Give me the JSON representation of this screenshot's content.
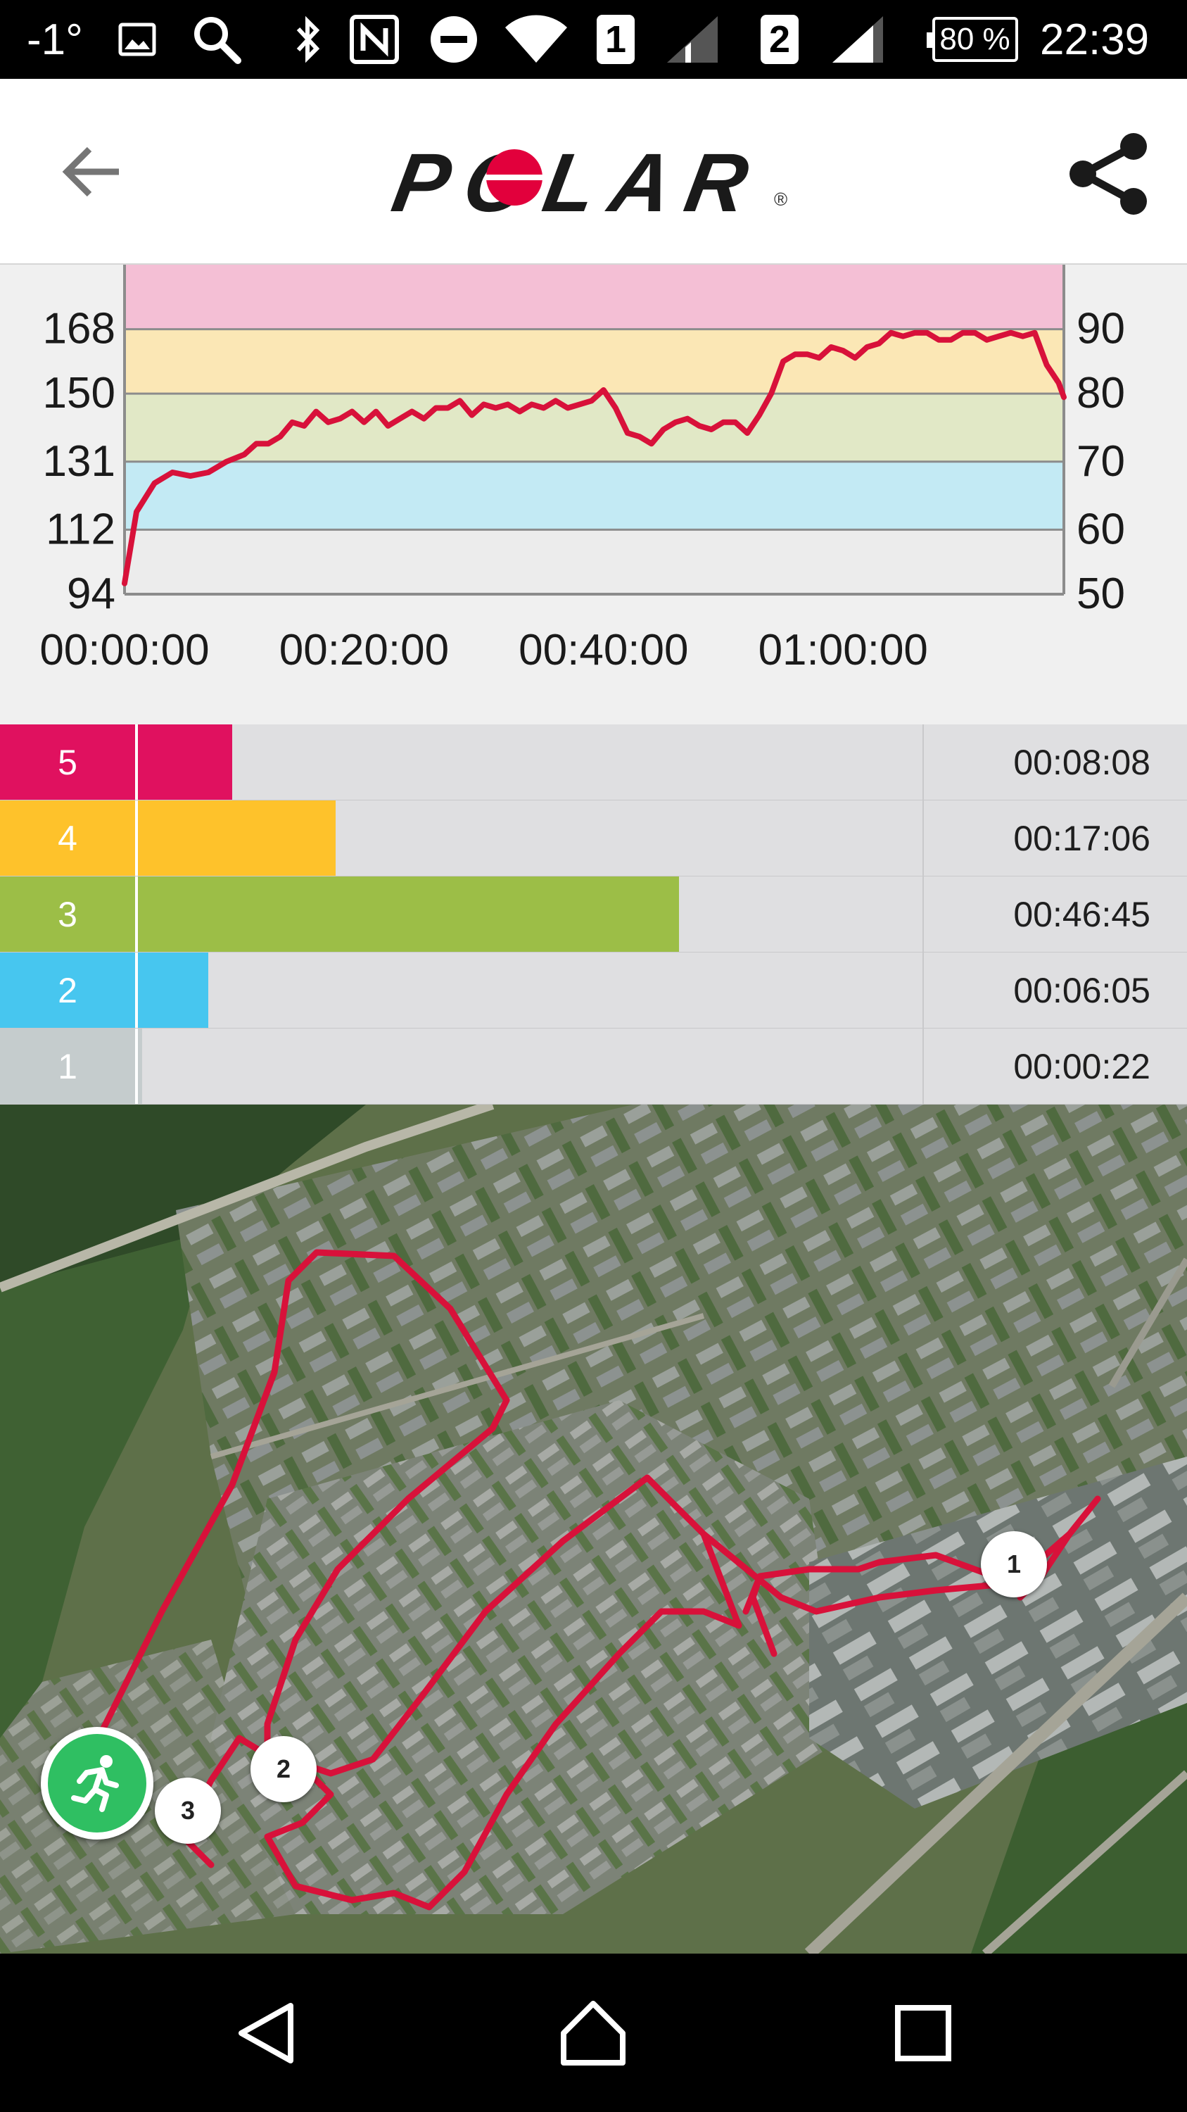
{
  "status_bar": {
    "temperature": "-1°",
    "sim1": "1",
    "sim2": "2",
    "battery": "80 %",
    "time": "22:39",
    "icons": [
      "image-icon",
      "search-icon",
      "bluetooth-icon",
      "nfc-icon",
      "do-not-disturb-icon",
      "wifi-icon",
      "sim1-signal-icon",
      "sim2-signal-icon",
      "battery-icon"
    ]
  },
  "app_bar": {
    "logo_text": "POLAR",
    "registered": "®",
    "icons": [
      "back-arrow-icon",
      "share-icon"
    ]
  },
  "chart_data": {
    "type": "line",
    "left_axis_ticks": [
      "168",
      "150",
      "131",
      "112",
      "94"
    ],
    "right_axis_ticks": [
      "90",
      "80",
      "70",
      "60",
      "50"
    ],
    "x_tick_labels": [
      "00:00:00",
      "00:20:00",
      "00:40:00",
      "01:00:00"
    ],
    "x_ticks_seconds": [
      0,
      1200,
      2400,
      3600
    ],
    "x_range_seconds": [
      0,
      4706
    ],
    "y_range": [
      94,
      186
    ],
    "zone_bands": [
      {
        "zone": 5,
        "from": 168,
        "to": 186,
        "color": "#f4bfd5"
      },
      {
        "zone": 4,
        "from": 150,
        "to": 168,
        "color": "#fbe7b5"
      },
      {
        "zone": 3,
        "from": 131,
        "to": 150,
        "color": "#e1e8c6"
      },
      {
        "zone": 2,
        "from": 112,
        "to": 131,
        "color": "#c3eaf4"
      },
      {
        "zone": 1,
        "from": 94,
        "to": 112,
        "color": "#ececec"
      }
    ],
    "line_color": "#d8113a",
    "series": [
      {
        "x": [
          0,
          60,
          150,
          240,
          330,
          420,
          510,
          600,
          660,
          720,
          780,
          840,
          900,
          960,
          1020,
          1080,
          1140,
          1200,
          1260,
          1320,
          1380,
          1440,
          1500,
          1560,
          1620,
          1680,
          1740,
          1800,
          1860,
          1920,
          1980,
          2040,
          2100,
          2160,
          2220,
          2280,
          2340,
          2400,
          2460,
          2520,
          2580,
          2640,
          2700,
          2760,
          2820,
          2880,
          2940,
          3000,
          3060,
          3120,
          3180,
          3240,
          3300,
          3360,
          3420,
          3480,
          3540,
          3600,
          3660,
          3720,
          3780,
          3840,
          3900,
          3960,
          4020,
          4080,
          4140,
          4200,
          4260,
          4320,
          4380,
          4440,
          4500,
          4560,
          4620,
          4680,
          4706
        ],
        "values": [
          97,
          117,
          125,
          128,
          127,
          128,
          131,
          133,
          136,
          136,
          138,
          142,
          141,
          145,
          142,
          143,
          145,
          142,
          145,
          141,
          143,
          145,
          143,
          146,
          146,
          148,
          144,
          147,
          146,
          147,
          145,
          147,
          146,
          148,
          146,
          147,
          148,
          151,
          146,
          139,
          138,
          136,
          140,
          142,
          143,
          141,
          140,
          142,
          142,
          139,
          144,
          150,
          159,
          161,
          161,
          160,
          163,
          162,
          160,
          163,
          164,
          167,
          166,
          167,
          167,
          165,
          165,
          167,
          167,
          165,
          166,
          167,
          166,
          167,
          158,
          153,
          149
        ]
      }
    ]
  },
  "zones": [
    {
      "num": "5",
      "time": "00:08:08",
      "fraction": 0.12,
      "color": "#e0115f"
    },
    {
      "num": "4",
      "time": "00:17:06",
      "fraction": 0.252,
      "color": "#fec22b"
    },
    {
      "num": "3",
      "time": "00:46:45",
      "fraction": 0.69,
      "color": "#9cbe47"
    },
    {
      "num": "2",
      "time": "00:06:05",
      "fraction": 0.09,
      "color": "#47c6ef"
    },
    {
      "num": "1",
      "time": "00:00:22",
      "fraction": 0.005,
      "color": "#c5cccd"
    }
  ],
  "map": {
    "route_color": "#d8113a",
    "markers": [
      "1",
      "2",
      "3"
    ],
    "sport_button_icon": "running-person-icon"
  },
  "nav_bar": {
    "icons": [
      "back-triangle-icon",
      "home-icon",
      "recents-square-icon"
    ]
  }
}
